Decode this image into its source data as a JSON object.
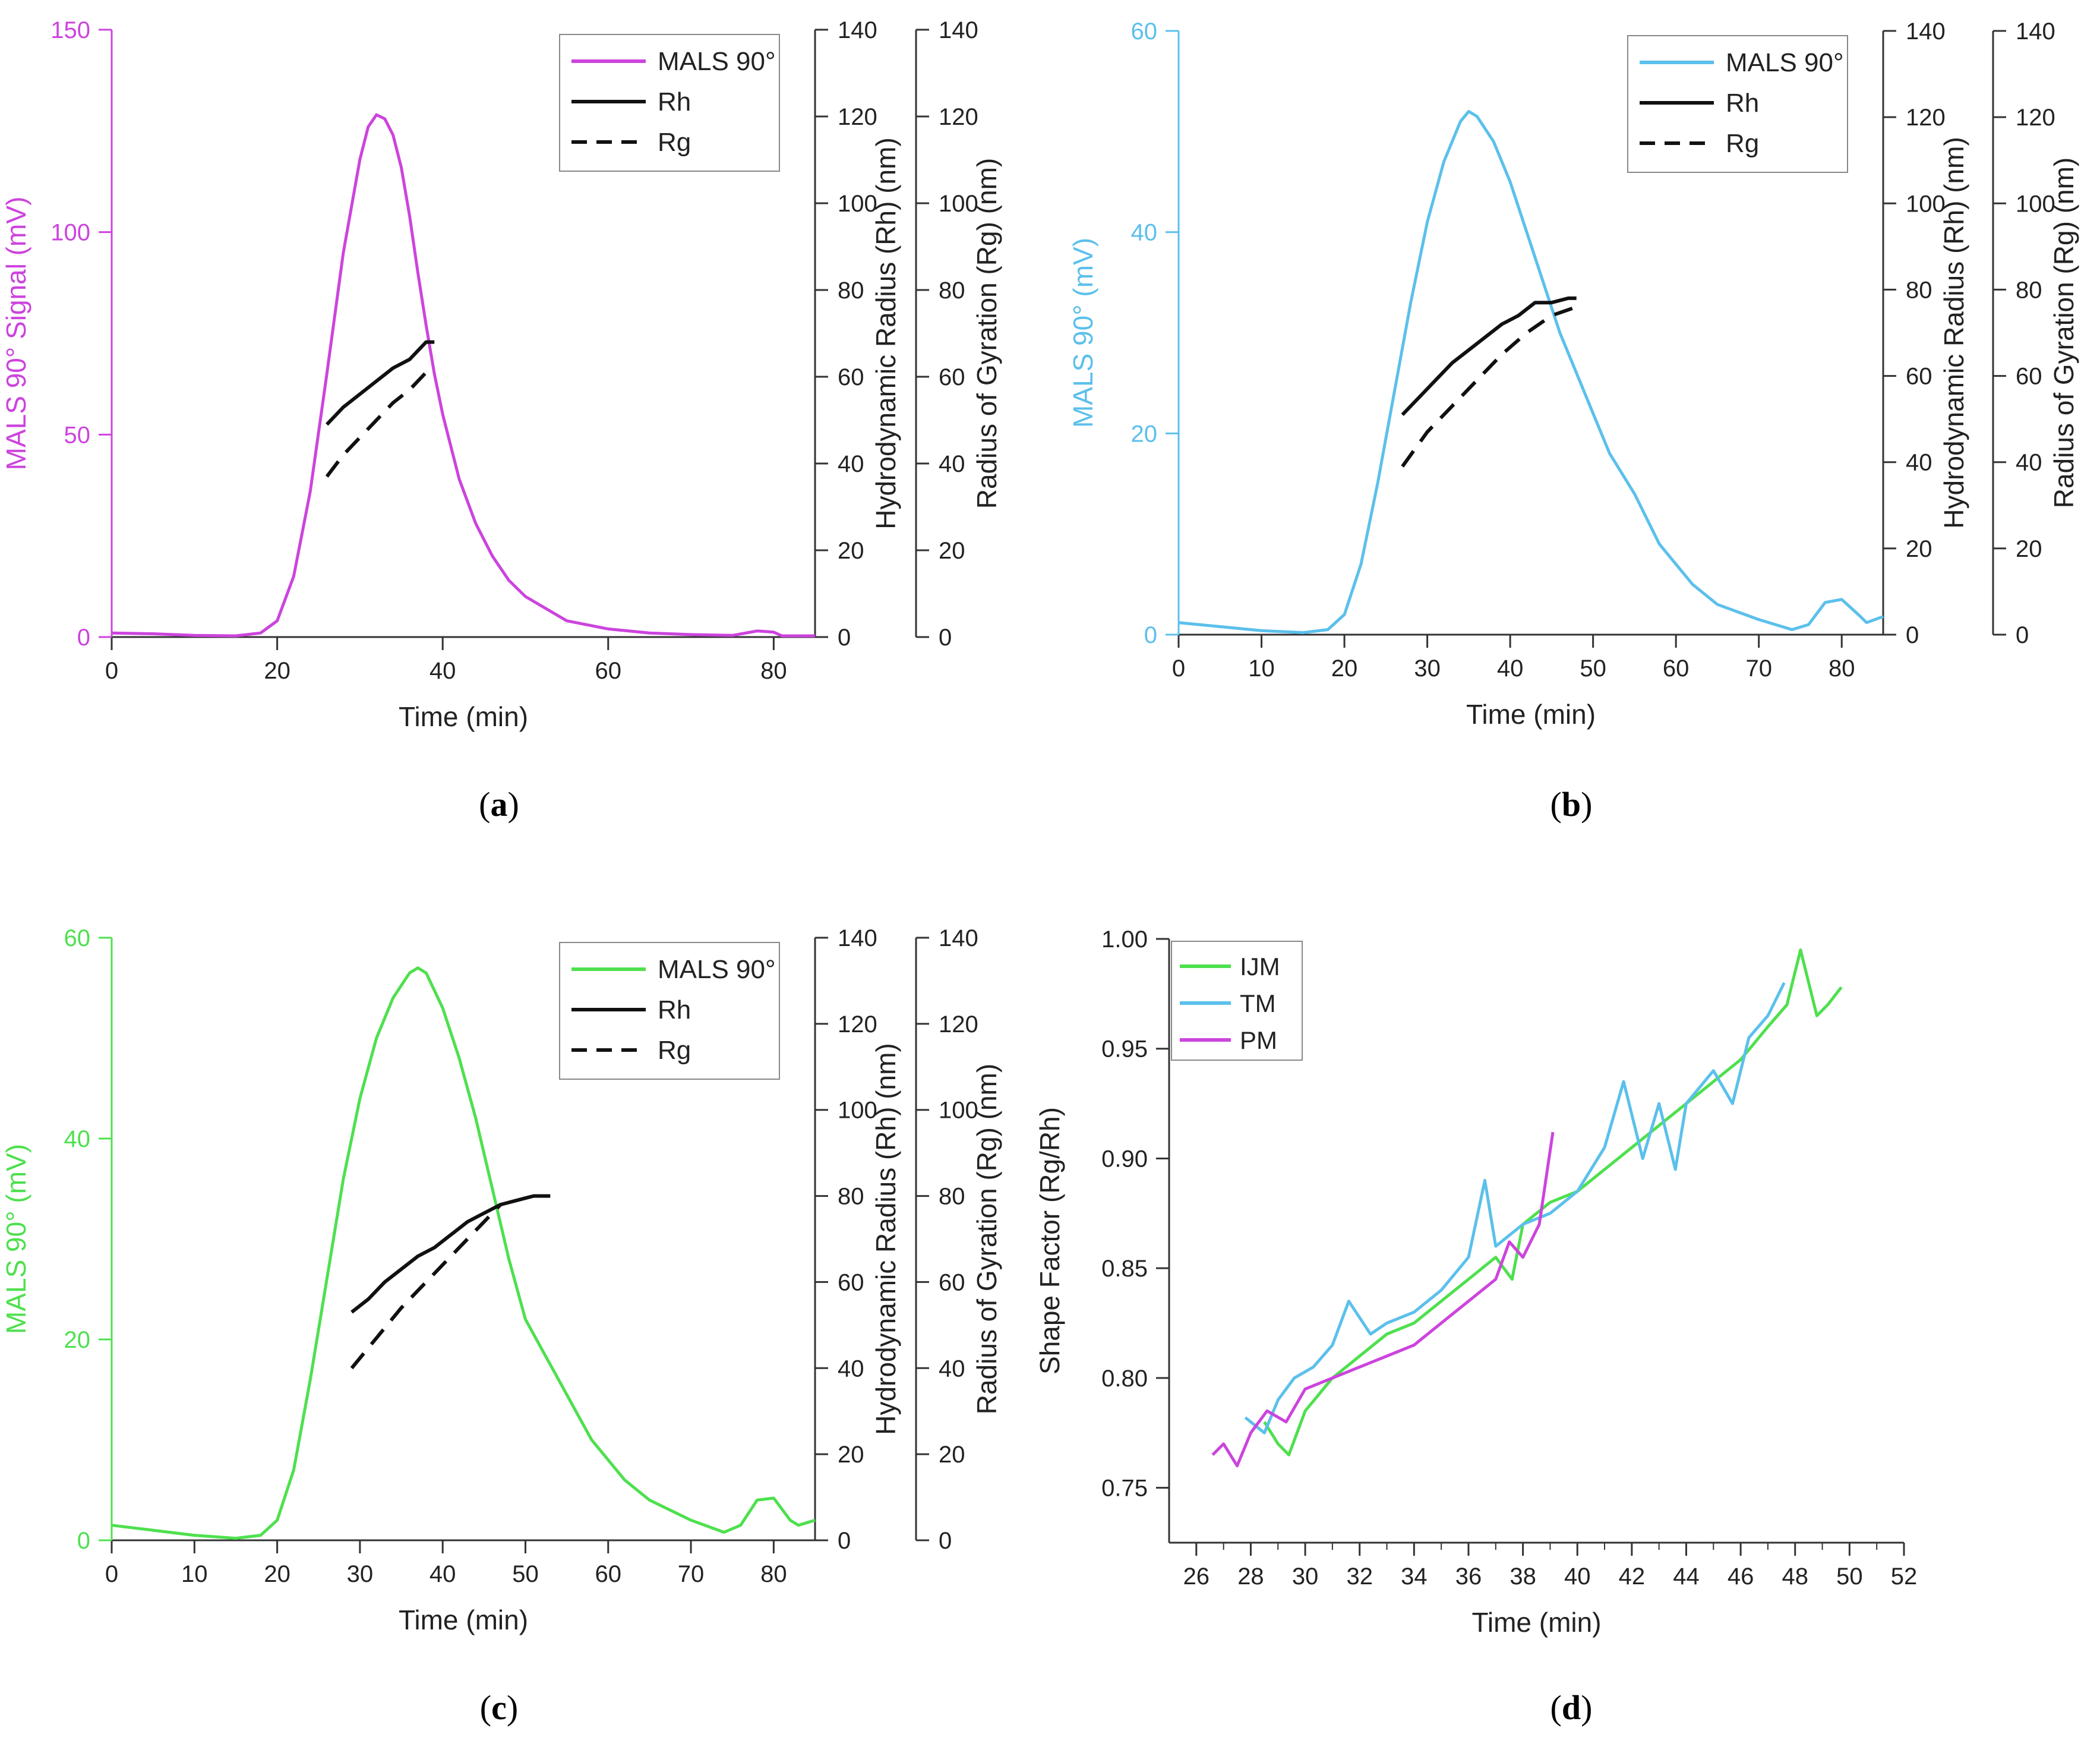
{
  "panels": [
    {
      "label": "a",
      "type": "line",
      "color": "#cc44dd",
      "xlabel": "Time (min)",
      "ylabel_left": "MALS 90° Signal (mV)",
      "ylabel_rh": "Hydrodynamic Radius (Rh) (nm)",
      "ylabel_rg": "Radius of Gyration (Rg) (nm)",
      "xlim": [
        0,
        85
      ],
      "ylim_left": [
        0,
        150
      ],
      "ylim_right": [
        0,
        140
      ],
      "xticks": [
        0,
        20,
        40,
        60,
        80
      ],
      "yticks_left": [
        0,
        50,
        100,
        150
      ],
      "yticks_right": [
        0,
        20,
        40,
        60,
        80,
        100,
        120,
        140
      ],
      "legend": [
        "MALS 90°",
        "Rh",
        "Rg"
      ],
      "legend_position": "top-right",
      "mals": [
        [
          0,
          1
        ],
        [
          5,
          0.8
        ],
        [
          10,
          0.4
        ],
        [
          15,
          0.3
        ],
        [
          18,
          1
        ],
        [
          20,
          4
        ],
        [
          22,
          15
        ],
        [
          24,
          36
        ],
        [
          26,
          65
        ],
        [
          28,
          95
        ],
        [
          30,
          118
        ],
        [
          31,
          126
        ],
        [
          32,
          129
        ],
        [
          33,
          128
        ],
        [
          34,
          124
        ],
        [
          35,
          116
        ],
        [
          36,
          104
        ],
        [
          37,
          90
        ],
        [
          38,
          77
        ],
        [
          39,
          65
        ],
        [
          40,
          55
        ],
        [
          42,
          39
        ],
        [
          44,
          28
        ],
        [
          46,
          20
        ],
        [
          48,
          14
        ],
        [
          50,
          10
        ],
        [
          55,
          4
        ],
        [
          60,
          2
        ],
        [
          65,
          1
        ],
        [
          70,
          0.6
        ],
        [
          75,
          0.4
        ],
        [
          78,
          1.5
        ],
        [
          80,
          1.2
        ],
        [
          81,
          0.3
        ],
        [
          85,
          0.3
        ]
      ],
      "rh": [
        [
          26,
          49
        ],
        [
          28,
          53
        ],
        [
          30,
          56
        ],
        [
          32,
          59
        ],
        [
          34,
          62
        ],
        [
          36,
          64
        ],
        [
          38,
          68
        ],
        [
          39,
          68
        ]
      ],
      "rg": [
        [
          26,
          37
        ],
        [
          28,
          42
        ],
        [
          30,
          46
        ],
        [
          32,
          50
        ],
        [
          34,
          54
        ],
        [
          36,
          57
        ],
        [
          38,
          61
        ]
      ]
    },
    {
      "label": "b",
      "type": "line",
      "color": "#5bc0eb",
      "xlabel": "Time (min)",
      "ylabel_left": "MALS 90° (mV)",
      "ylabel_rh": "Hydrodynamic Radius (Rh) (nm)",
      "ylabel_rg": "Radius of Gyration (Rg) (nm)",
      "xlim": [
        0,
        85
      ],
      "ylim_left": [
        0,
        60
      ],
      "ylim_right": [
        0,
        140
      ],
      "xticks": [
        0,
        10,
        20,
        30,
        40,
        50,
        60,
        70,
        80
      ],
      "yticks_left": [
        0,
        20,
        40,
        60
      ],
      "yticks_right": [
        0,
        20,
        40,
        60,
        80,
        100,
        120,
        140
      ],
      "legend": [
        "MALS 90°",
        "Rh",
        "Rg"
      ],
      "legend_position": "top-right",
      "mals": [
        [
          0,
          1.2
        ],
        [
          5,
          0.8
        ],
        [
          10,
          0.4
        ],
        [
          15,
          0.2
        ],
        [
          18,
          0.5
        ],
        [
          20,
          2
        ],
        [
          22,
          7
        ],
        [
          24,
          15
        ],
        [
          26,
          24
        ],
        [
          28,
          33
        ],
        [
          30,
          41
        ],
        [
          32,
          47
        ],
        [
          34,
          51
        ],
        [
          35,
          52
        ],
        [
          36,
          51.5
        ],
        [
          38,
          49
        ],
        [
          40,
          45
        ],
        [
          42,
          40
        ],
        [
          44,
          35
        ],
        [
          46,
          30
        ],
        [
          48,
          26
        ],
        [
          50,
          22
        ],
        [
          52,
          18
        ],
        [
          55,
          14
        ],
        [
          58,
          9
        ],
        [
          60,
          7
        ],
        [
          62,
          5
        ],
        [
          65,
          3
        ],
        [
          70,
          1.5
        ],
        [
          74,
          0.5
        ],
        [
          76,
          1
        ],
        [
          78,
          3.2
        ],
        [
          80,
          3.5
        ],
        [
          82,
          2
        ],
        [
          83,
          1.2
        ],
        [
          85,
          1.8
        ]
      ],
      "rh": [
        [
          27,
          51
        ],
        [
          29,
          55
        ],
        [
          31,
          59
        ],
        [
          33,
          63
        ],
        [
          35,
          66
        ],
        [
          37,
          69
        ],
        [
          39,
          72
        ],
        [
          41,
          74
        ],
        [
          43,
          77
        ],
        [
          45,
          77
        ],
        [
          47,
          78
        ],
        [
          48,
          78
        ]
      ],
      "rg": [
        [
          27,
          39
        ],
        [
          30,
          47
        ],
        [
          33,
          53
        ],
        [
          36,
          59
        ],
        [
          39,
          65
        ],
        [
          42,
          70
        ],
        [
          45,
          74
        ],
        [
          48,
          76
        ]
      ]
    },
    {
      "label": "c",
      "type": "line",
      "color": "#4ee04e",
      "xlabel": "Time (min)",
      "ylabel_left": "MALS 90° (mV)",
      "ylabel_rh": "Hydrodynamic Radius (Rh) (nm)",
      "ylabel_rg": "Radius of Gyration (Rg) (nm)",
      "xlim": [
        0,
        85
      ],
      "ylim_left": [
        0,
        60
      ],
      "ylim_right": [
        0,
        140
      ],
      "xticks": [
        0,
        10,
        20,
        30,
        40,
        50,
        60,
        70,
        80
      ],
      "yticks_left": [
        0,
        20,
        40,
        60
      ],
      "yticks_right": [
        0,
        20,
        40,
        60,
        80,
        100,
        120,
        140
      ],
      "legend": [
        "MALS 90°",
        "Rh",
        "Rg"
      ],
      "legend_position": "top-right",
      "mals": [
        [
          0,
          1.5
        ],
        [
          5,
          1
        ],
        [
          10,
          0.5
        ],
        [
          15,
          0.2
        ],
        [
          18,
          0.5
        ],
        [
          20,
          2
        ],
        [
          22,
          7
        ],
        [
          24,
          16
        ],
        [
          26,
          26
        ],
        [
          28,
          36
        ],
        [
          30,
          44
        ],
        [
          32,
          50
        ],
        [
          34,
          54
        ],
        [
          36,
          56.5
        ],
        [
          37,
          57
        ],
        [
          38,
          56.5
        ],
        [
          40,
          53
        ],
        [
          42,
          48
        ],
        [
          44,
          42
        ],
        [
          46,
          35
        ],
        [
          48,
          28
        ],
        [
          50,
          22
        ],
        [
          52,
          19
        ],
        [
          54,
          16
        ],
        [
          56,
          13
        ],
        [
          58,
          10
        ],
        [
          60,
          8
        ],
        [
          62,
          6
        ],
        [
          65,
          4
        ],
        [
          70,
          2
        ],
        [
          74,
          0.8
        ],
        [
          76,
          1.5
        ],
        [
          78,
          4
        ],
        [
          80,
          4.2
        ],
        [
          82,
          2
        ],
        [
          83,
          1.5
        ],
        [
          85,
          2
        ]
      ],
      "rh": [
        [
          29,
          53
        ],
        [
          31,
          56
        ],
        [
          33,
          60
        ],
        [
          35,
          63
        ],
        [
          37,
          66
        ],
        [
          39,
          68
        ],
        [
          41,
          71
        ],
        [
          43,
          74
        ],
        [
          45,
          76
        ],
        [
          47,
          78
        ],
        [
          49,
          79
        ],
        [
          51,
          80
        ],
        [
          53,
          80
        ]
      ],
      "rg": [
        [
          29,
          40
        ],
        [
          32,
          47
        ],
        [
          35,
          54
        ],
        [
          38,
          60
        ],
        [
          41,
          66
        ],
        [
          44,
          72
        ],
        [
          47,
          78
        ]
      ]
    },
    {
      "label": "d",
      "type": "line",
      "xlabel": "Time (min)",
      "ylabel": "Shape Factor (Rg/Rh)",
      "xlim": [
        25,
        52
      ],
      "ylim": [
        0.725,
        1.0
      ],
      "xticks": [
        26,
        28,
        30,
        32,
        34,
        36,
        38,
        40,
        42,
        44,
        46,
        48,
        50,
        52
      ],
      "yticks": [
        0.75,
        0.8,
        0.85,
        0.9,
        0.95,
        1.0
      ],
      "ytick_labels": [
        "0.75",
        "0.80",
        "0.85",
        "0.90",
        "0.95",
        "1.00"
      ],
      "legend_position": "top-left",
      "series": [
        {
          "name": "IJM",
          "color": "#4ee04e",
          "points": [
            [
              28.5,
              0.78
            ],
            [
              29,
              0.77
            ],
            [
              29.4,
              0.765
            ],
            [
              30,
              0.785
            ],
            [
              31,
              0.8
            ],
            [
              32,
              0.81
            ],
            [
              33,
              0.82
            ],
            [
              34,
              0.825
            ],
            [
              35,
              0.835
            ],
            [
              36,
              0.845
            ],
            [
              37,
              0.855
            ],
            [
              37.6,
              0.845
            ],
            [
              38,
              0.87
            ],
            [
              39,
              0.88
            ],
            [
              40,
              0.885
            ],
            [
              41,
              0.895
            ],
            [
              42,
              0.905
            ],
            [
              43,
              0.915
            ],
            [
              44,
              0.925
            ],
            [
              45,
              0.935
            ],
            [
              46,
              0.945
            ],
            [
              47,
              0.96
            ],
            [
              47.7,
              0.97
            ],
            [
              48.2,
              0.995
            ],
            [
              48.8,
              0.965
            ],
            [
              49.2,
              0.97
            ],
            [
              49.7,
              0.978
            ]
          ]
        },
        {
          "name": "TM",
          "color": "#5bc0eb",
          "points": [
            [
              27.8,
              0.782
            ],
            [
              28.5,
              0.775
            ],
            [
              29,
              0.79
            ],
            [
              29.6,
              0.8
            ],
            [
              30.3,
              0.805
            ],
            [
              31,
              0.815
            ],
            [
              31.6,
              0.835
            ],
            [
              32.4,
              0.82
            ],
            [
              33,
              0.825
            ],
            [
              34,
              0.83
            ],
            [
              35,
              0.84
            ],
            [
              36,
              0.855
            ],
            [
              36.6,
              0.89
            ],
            [
              37,
              0.86
            ],
            [
              38,
              0.87
            ],
            [
              39,
              0.875
            ],
            [
              40,
              0.885
            ],
            [
              41,
              0.905
            ],
            [
              41.7,
              0.935
            ],
            [
              42.4,
              0.9
            ],
            [
              43,
              0.925
            ],
            [
              43.6,
              0.895
            ],
            [
              44,
              0.925
            ],
            [
              45,
              0.94
            ],
            [
              45.7,
              0.925
            ],
            [
              46.3,
              0.955
            ],
            [
              47,
              0.965
            ],
            [
              47.6,
              0.98
            ]
          ]
        },
        {
          "name": "PM",
          "color": "#cc44dd",
          "points": [
            [
              26.6,
              0.765
            ],
            [
              27,
              0.77
            ],
            [
              27.5,
              0.76
            ],
            [
              28,
              0.775
            ],
            [
              28.6,
              0.785
            ],
            [
              29.3,
              0.78
            ],
            [
              30,
              0.795
            ],
            [
              31,
              0.8
            ],
            [
              32,
              0.805
            ],
            [
              33,
              0.81
            ],
            [
              34,
              0.815
            ],
            [
              35,
              0.825
            ],
            [
              36,
              0.835
            ],
            [
              37,
              0.845
            ],
            [
              37.5,
              0.862
            ],
            [
              38,
              0.855
            ],
            [
              38.6,
              0.87
            ],
            [
              39.1,
              0.912
            ]
          ]
        }
      ]
    }
  ]
}
